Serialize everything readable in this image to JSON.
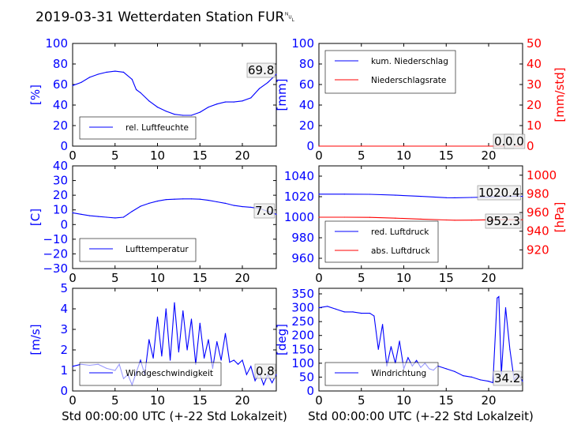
{
  "title": "2019-03-31 Wetterdaten Station FUR␀",
  "colors": {
    "primary": "#0000ff",
    "secondary": "#ff0000",
    "light": "#8c8cff"
  },
  "chart_data": [
    {
      "type": "line",
      "ylabel": "[%]",
      "xlim": [
        0,
        24
      ],
      "ylim": [
        0,
        100
      ],
      "yticks": [
        "0",
        "20",
        "40",
        "60",
        "80",
        "100"
      ],
      "xticks": [
        "0",
        "5",
        "10",
        "15",
        "20"
      ],
      "series": [
        {
          "name": "rel. Luftfeuchte",
          "x": [
            0,
            1,
            2,
            3,
            4,
            5,
            6,
            7,
            7.5,
            8,
            9,
            10,
            11,
            12,
            13,
            14,
            15,
            16,
            17,
            18,
            19,
            20,
            21,
            22,
            23,
            24
          ],
          "y": [
            59,
            62,
            67,
            70,
            72,
            73,
            72,
            65,
            55,
            52,
            44,
            38,
            34,
            31,
            30,
            30,
            33,
            38,
            41,
            43,
            43,
            44,
            47,
            56,
            62,
            70
          ]
        }
      ],
      "annotation": "69.8",
      "grid": false,
      "legend": "bottom-left"
    },
    {
      "type": "line",
      "ylabel": "[mm]",
      "ylabel_right": "[mm/std]",
      "xlim": [
        0,
        24
      ],
      "ylim": [
        0,
        100
      ],
      "ylim_right": [
        0,
        50
      ],
      "yticks": [
        "0",
        "20",
        "40",
        "60",
        "80",
        "100"
      ],
      "yticks_right": [
        "0",
        "10",
        "20",
        "30",
        "40",
        "50"
      ],
      "xticks": [
        "0",
        "5",
        "10",
        "15",
        "20"
      ],
      "series": [
        {
          "name": "kum. Niederschlag",
          "x": [
            0,
            24
          ],
          "y": [
            0,
            0
          ]
        },
        {
          "name": "Niederschlagsrate",
          "axis": "right",
          "x": [
            0,
            24
          ],
          "y": [
            0,
            0
          ]
        }
      ],
      "annotation": "0.0",
      "annotation_right": "0.0",
      "grid": false,
      "legend": "top-left"
    },
    {
      "type": "line",
      "ylabel": "[C]",
      "xlim": [
        0,
        24
      ],
      "ylim": [
        -30,
        40
      ],
      "yticks": [
        "−30",
        "−20",
        "−10",
        "0",
        "10",
        "20",
        "30",
        "40"
      ],
      "xticks": [
        "0",
        "5",
        "10",
        "15",
        "20"
      ],
      "series": [
        {
          "name": "Lufttemperatur",
          "x": [
            0,
            1,
            2,
            3,
            4,
            5,
            6,
            6.5,
            7,
            8,
            9,
            10,
            11,
            12,
            13,
            14,
            15,
            16,
            17,
            18,
            19,
            20,
            21,
            22,
            23,
            24
          ],
          "y": [
            8,
            7,
            6,
            5.5,
            5,
            4.5,
            5,
            7,
            9,
            12.5,
            14.5,
            16,
            17,
            17.3,
            17.5,
            17.5,
            17.3,
            16.5,
            15.5,
            14.5,
            13,
            12.2,
            11.8,
            11,
            9,
            7
          ]
        }
      ],
      "annotation": "7.0",
      "grid": false,
      "legend": "bottom-left"
    },
    {
      "type": "line",
      "ylabel": "",
      "ylabel_right": "[hPa]",
      "xlim": [
        0,
        24
      ],
      "ylim": [
        950,
        1050
      ],
      "ylim_right": [
        900,
        1010
      ],
      "yticks": [
        "960",
        "980",
        "1000",
        "1020",
        "1040"
      ],
      "yticks_right": [
        "920",
        "940",
        "960",
        "980",
        "1000"
      ],
      "xticks": [
        "0",
        "5",
        "10",
        "15",
        "20"
      ],
      "series": [
        {
          "name": "red. Luftdruck",
          "x": [
            0,
            3,
            6,
            9,
            12,
            15,
            16,
            18,
            20,
            22,
            24
          ],
          "y": [
            1022.5,
            1022.5,
            1022.3,
            1021.5,
            1020.3,
            1019,
            1018.9,
            1019.2,
            1019.7,
            1020.2,
            1020.4
          ]
        },
        {
          "name": "abs. Luftdruck",
          "axis": "right",
          "x": [
            0,
            3,
            6,
            9,
            12,
            15,
            16,
            18,
            20,
            22,
            24
          ],
          "y": [
            955,
            955,
            954.8,
            954,
            953,
            952,
            951.8,
            951.9,
            952.2,
            952.5,
            952.3
          ]
        }
      ],
      "annotation": "1020.4",
      "annotation_right": "952.3",
      "grid": false,
      "legend": "bottom-left"
    },
    {
      "type": "line",
      "ylabel": "[m/s]",
      "xlim": [
        0,
        24
      ],
      "ylim": [
        0,
        5
      ],
      "yticks": [
        "0",
        "1",
        "2",
        "3",
        "4",
        "5"
      ],
      "xticks": [
        "0",
        "5",
        "10",
        "15",
        "20"
      ],
      "xlabel": "Std 00:00:00 UTC (+-22 Std Lokalzeit)",
      "series": [
        {
          "name": "Windgeschwindigkeit",
          "x": [
            0,
            1,
            2,
            3,
            4,
            5,
            5.5,
            6,
            6.5,
            7,
            7.5,
            8,
            8.5,
            9,
            9.5,
            10,
            10.5,
            11,
            11.5,
            12,
            12.5,
            13,
            13.5,
            14,
            14.5,
            15,
            15.5,
            16,
            16.5,
            17,
            17.5,
            18,
            18.5,
            19,
            19.5,
            20,
            20.5,
            21,
            21.5,
            22,
            22.5,
            23,
            23.5,
            24
          ],
          "y": [
            1.2,
            1.3,
            1.25,
            1.3,
            1.1,
            1.0,
            1.3,
            0.6,
            0.8,
            0.3,
            0.9,
            1.5,
            0.8,
            2.5,
            1.6,
            3.6,
            1.7,
            4.0,
            1.5,
            4.3,
            1.9,
            3.9,
            2.0,
            3.5,
            1.3,
            3.3,
            1.6,
            2.5,
            1.1,
            2.4,
            1.5,
            2.8,
            1.4,
            1.5,
            1.3,
            1.5,
            0.8,
            1.2,
            0.5,
            0.9,
            0.3,
            0.8,
            0.4,
            0.8
          ]
        }
      ],
      "annotation": "0.8",
      "grid": false,
      "legend": "bottom-left"
    },
    {
      "type": "line",
      "ylabel": "[deg]",
      "xlim": [
        0,
        24
      ],
      "ylim": [
        0,
        370
      ],
      "yticks": [
        "0",
        "50",
        "100",
        "150",
        "200",
        "250",
        "300",
        "350"
      ],
      "xticks": [
        "0",
        "5",
        "10",
        "15",
        "20"
      ],
      "xlabel": "Std 00:00:00 UTC (+-22 Std Lokalzeit)",
      "series": [
        {
          "name": "Windrichtung",
          "x": [
            0,
            1,
            2,
            3,
            4,
            5,
            6,
            6.5,
            7,
            7.5,
            8,
            8.5,
            9,
            9.5,
            10,
            10.5,
            11,
            11.5,
            12,
            12.5,
            13,
            13.5,
            14,
            15,
            16,
            17,
            18,
            19,
            20,
            20.5,
            21,
            21.2,
            21.5,
            22,
            22.5,
            23,
            23.5,
            24
          ],
          "y": [
            300,
            305,
            295,
            285,
            285,
            280,
            280,
            270,
            150,
            240,
            90,
            160,
            100,
            180,
            80,
            120,
            90,
            110,
            85,
            100,
            80,
            75,
            90,
            80,
            70,
            55,
            50,
            40,
            35,
            30,
            335,
            340,
            60,
            300,
            150,
            40,
            60,
            35
          ]
        }
      ],
      "annotation": "34.2",
      "grid": false,
      "legend": "bottom-left"
    }
  ]
}
